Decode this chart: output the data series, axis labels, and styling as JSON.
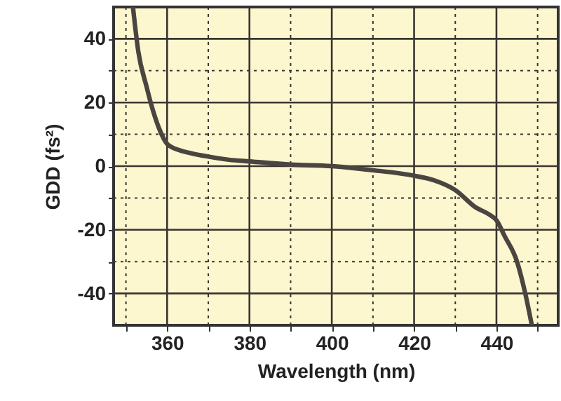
{
  "chart_data": {
    "type": "line",
    "xlabel": "Wavelength (nm)",
    "ylabel": "GDD (fs²)",
    "x": [
      351.7,
      353,
      355,
      356,
      358,
      360,
      363,
      366,
      370,
      375,
      380,
      390,
      400,
      410,
      420,
      425,
      430,
      435,
      438,
      440,
      442,
      445,
      447,
      448.6
    ],
    "series": [
      {
        "color": "#4a4540",
        "values": [
          50,
          36,
          25,
          20,
          12,
          7,
          5,
          4,
          3,
          2,
          1.5,
          0.5,
          0,
          -1.3,
          -3,
          -4.5,
          -7.5,
          -13,
          -15,
          -17,
          -22,
          -30,
          -40,
          -50
        ]
      }
    ],
    "xlim": [
      347,
      455
    ],
    "xticks": [
      {
        "value": 350,
        "label": null
      },
      360,
      {
        "value": 370,
        "label": null
      },
      380,
      {
        "value": 390,
        "label": null
      },
      400,
      {
        "value": 410,
        "label": null
      },
      420,
      {
        "value": 430,
        "label": null
      },
      440,
      {
        "value": 450,
        "label": null
      }
    ],
    "ylim": [
      -50,
      50
    ],
    "yticks": [
      -40,
      {
        "value": -30,
        "label": null
      },
      -20,
      {
        "value": -10,
        "label": null
      },
      0,
      {
        "value": 10,
        "label": null
      },
      20,
      {
        "value": 30,
        "label": null
      },
      40
    ],
    "grid": true,
    "marker": "none",
    "line_style": "solid"
  }
}
